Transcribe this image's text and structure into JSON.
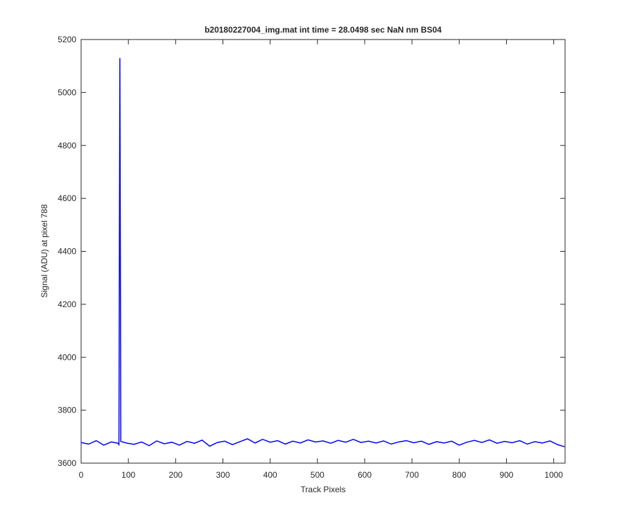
{
  "chart_data": {
    "type": "line",
    "title": "b20180227004_img.mat int time = 28.0498 sec  NaN nm BS04",
    "x_label": "Track Pixels",
    "y_label": "Signal (ADU) at pixel 788",
    "x": [
      0,
      16,
      32,
      48,
      64,
      78,
      80,
      82,
      84,
      96,
      112,
      128,
      144,
      160,
      176,
      192,
      208,
      224,
      240,
      256,
      272,
      288,
      304,
      320,
      336,
      352,
      368,
      384,
      400,
      416,
      432,
      448,
      464,
      480,
      496,
      512,
      528,
      544,
      560,
      576,
      592,
      608,
      624,
      640,
      656,
      672,
      688,
      704,
      720,
      736,
      752,
      768,
      784,
      800,
      816,
      832,
      848,
      864,
      880,
      896,
      912,
      928,
      944,
      960,
      976,
      992,
      1008,
      1023
    ],
    "series": [
      {
        "color": "#0000ff",
        "values": [
          3678,
          3672,
          3685,
          3668,
          3680,
          3675,
          3670,
          5130,
          3682,
          3676,
          3671,
          3680,
          3666,
          3684,
          3673,
          3679,
          3668,
          3682,
          3675,
          3687,
          3664,
          3678,
          3683,
          3670,
          3681,
          3692,
          3676,
          3690,
          3679,
          3685,
          3672,
          3683,
          3676,
          3688,
          3680,
          3684,
          3675,
          3686,
          3679,
          3690,
          3678,
          3683,
          3676,
          3684,
          3672,
          3680,
          3685,
          3677,
          3683,
          3671,
          3681,
          3676,
          3683,
          3668,
          3679,
          3686,
          3678,
          3688,
          3675,
          3682,
          3677,
          3685,
          3672,
          3681,
          3676,
          3684,
          3670,
          3662
        ]
      }
    ],
    "xlim": [
      0,
      1024
    ],
    "ylim": [
      3600,
      5200
    ],
    "xticks": [
      0,
      100,
      200,
      300,
      400,
      500,
      600,
      700,
      800,
      900,
      1000
    ],
    "yticks": [
      3600,
      3800,
      4000,
      4200,
      4400,
      4600,
      4800,
      5000,
      5200
    ],
    "grid": false
  }
}
